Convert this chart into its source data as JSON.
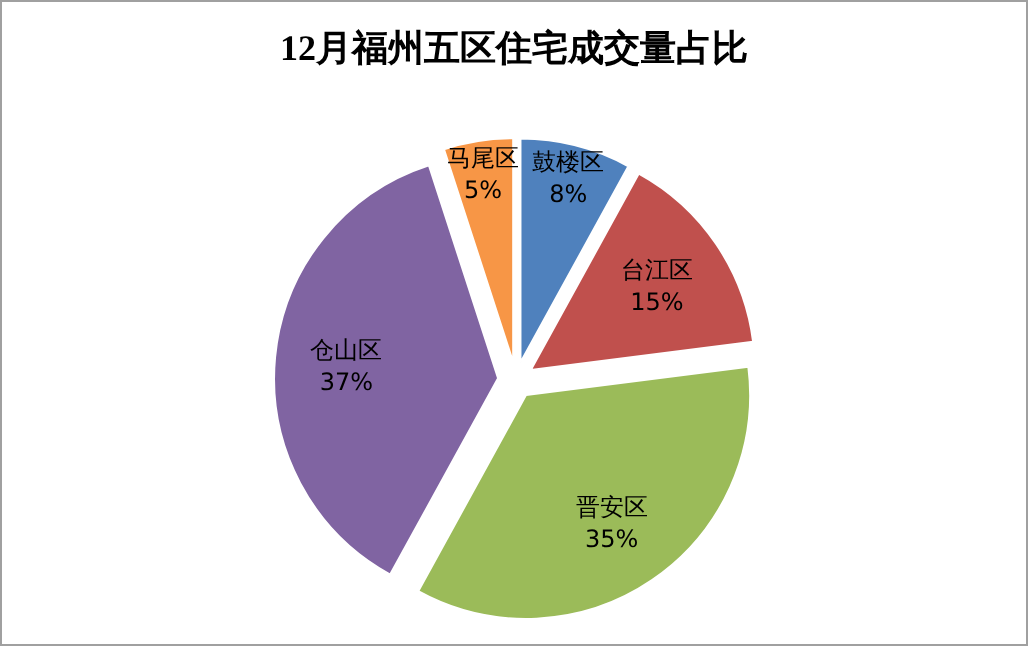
{
  "chart_data": {
    "type": "pie",
    "title": "12月福州五区住宅成交量占比",
    "categories": [
      "鼓楼区",
      "台江区",
      "晋安区",
      "仓山区",
      "马尾区"
    ],
    "values": [
      8,
      15,
      35,
      37,
      5
    ],
    "colors": [
      "#4f81bd",
      "#c0504d",
      "#9bbb59",
      "#8064a2",
      "#f79646"
    ],
    "value_labels": [
      "8%",
      "15%",
      "35%",
      "37%",
      "5%"
    ]
  }
}
